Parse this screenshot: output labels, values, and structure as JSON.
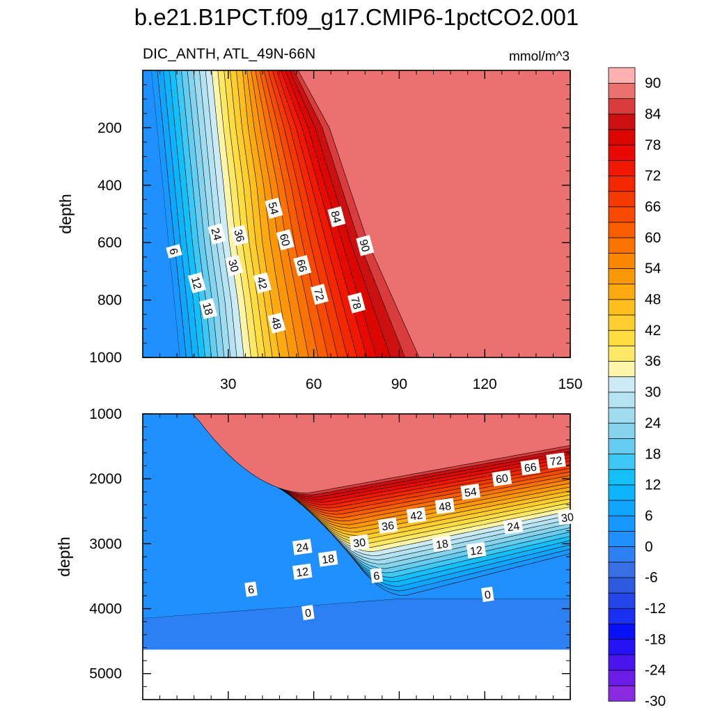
{
  "chart_data": {
    "type": "contour",
    "title": "b.e21.B1PCT.f09_g17.CMIP6-1pctCO2.001",
    "subtitle_left": "DIC_ANTH, ATL_49N-66N",
    "units": "mmol/m^3",
    "colorbar": {
      "levels": [
        -30,
        -27,
        -24,
        -21,
        -18,
        -15,
        -12,
        -9,
        -6,
        -3,
        0,
        3,
        6,
        9,
        12,
        15,
        18,
        21,
        24,
        27,
        30,
        33,
        36,
        39,
        42,
        45,
        48,
        51,
        54,
        57,
        60,
        63,
        66,
        69,
        72,
        75,
        78,
        81,
        84,
        87,
        90
      ],
      "tick_labels": [
        "-30",
        "-24",
        "-18",
        "-12",
        "-6",
        "0",
        "6",
        "12",
        "18",
        "24",
        "30",
        "36",
        "42",
        "48",
        "54",
        "60",
        "66",
        "72",
        "78",
        "84",
        "90"
      ],
      "colors": [
        "#8a2be2",
        "#6a1ee8",
        "#4a16f0",
        "#2612f5",
        "#0a10f5",
        "#1a30f0",
        "#2446e8",
        "#2e5ae0",
        "#3a6ee6",
        "#2d80f2",
        "#2090ff",
        "#1698ff",
        "#0ea6ff",
        "#0eb4ff",
        "#13c0fa",
        "#40c8f5",
        "#66ccf0",
        "#86d3ee",
        "#a0dcf0",
        "#b6e3f3",
        "#cdebf5",
        "#fff5a8",
        "#ffe866",
        "#ffdc40",
        "#fecd2e",
        "#fdbe1e",
        "#fdaa10",
        "#fc9808",
        "#fb8604",
        "#fa7202",
        "#f85e00",
        "#f64a00",
        "#f53a00",
        "#f42800",
        "#f01800",
        "#e80a00",
        "#dc0600",
        "#cc1010",
        "#d83c3c",
        "#ec7070",
        "#ffb0b0"
      ]
    },
    "panels": [
      {
        "name": "upper-panel",
        "ylabel": "depth",
        "xlim": [
          0,
          150
        ],
        "ylim": [
          1000,
          0
        ],
        "x_ticks": [
          30,
          60,
          90,
          120,
          150
        ],
        "x_tick_labels": [
          "30",
          "60",
          "90",
          "120",
          "150"
        ],
        "y_ticks": [
          200,
          400,
          600,
          800,
          1000
        ],
        "y_tick_labels": [
          "200",
          "400",
          "600",
          "800",
          "1000"
        ],
        "contour_labels": [
          {
            "text": "6",
            "x": 11,
            "y": 630
          },
          {
            "text": "12",
            "x": 19,
            "y": 740
          },
          {
            "text": "18",
            "x": 23,
            "y": 830
          },
          {
            "text": "24",
            "x": 26,
            "y": 570
          },
          {
            "text": "30",
            "x": 32,
            "y": 680
          },
          {
            "text": "36",
            "x": 34,
            "y": 575
          },
          {
            "text": "42",
            "x": 42,
            "y": 740
          },
          {
            "text": "48",
            "x": 47,
            "y": 880
          },
          {
            "text": "54",
            "x": 46,
            "y": 480
          },
          {
            "text": "60",
            "x": 50,
            "y": 590
          },
          {
            "text": "66",
            "x": 56,
            "y": 680
          },
          {
            "text": "72",
            "x": 62,
            "y": 780
          },
          {
            "text": "78",
            "x": 75,
            "y": 810
          },
          {
            "text": "84",
            "x": 68,
            "y": 510
          },
          {
            "text": "90",
            "x": 78,
            "y": 610
          }
        ]
      },
      {
        "name": "lower-panel",
        "ylabel": "depth",
        "xlim": [
          0,
          150
        ],
        "ylim": [
          5400,
          1000
        ],
        "x_ticks": [
          30,
          60,
          90,
          120,
          150
        ],
        "x_tick_labels": [],
        "y_ticks": [
          1000,
          2000,
          3000,
          4000,
          5000
        ],
        "y_tick_labels": [
          "1000",
          "2000",
          "3000",
          "4000",
          "5000"
        ],
        "bottom_depth": 4630,
        "contour_labels": [
          {
            "text": "72",
            "x": 145,
            "y": 1720
          },
          {
            "text": "66",
            "x": 136,
            "y": 1820
          },
          {
            "text": "60",
            "x": 126,
            "y": 1990
          },
          {
            "text": "54",
            "x": 115,
            "y": 2200
          },
          {
            "text": "48",
            "x": 106,
            "y": 2420
          },
          {
            "text": "42",
            "x": 96,
            "y": 2560
          },
          {
            "text": "36",
            "x": 86,
            "y": 2720
          },
          {
            "text": "30",
            "x": 149,
            "y": 2590
          },
          {
            "text": "24",
            "x": 130,
            "y": 2730
          },
          {
            "text": "30",
            "x": 76,
            "y": 2980
          },
          {
            "text": "18",
            "x": 105,
            "y": 3000
          },
          {
            "text": "12",
            "x": 117,
            "y": 3100
          },
          {
            "text": "24",
            "x": 56,
            "y": 3050
          },
          {
            "text": "18",
            "x": 65,
            "y": 3230
          },
          {
            "text": "12",
            "x": 56,
            "y": 3430
          },
          {
            "text": "6",
            "x": 82,
            "y": 3490
          },
          {
            "text": "6",
            "x": 38,
            "y": 3700
          },
          {
            "text": "0",
            "x": 58,
            "y": 4060
          },
          {
            "text": "0",
            "x": 121,
            "y": 3780
          }
        ]
      }
    ]
  }
}
